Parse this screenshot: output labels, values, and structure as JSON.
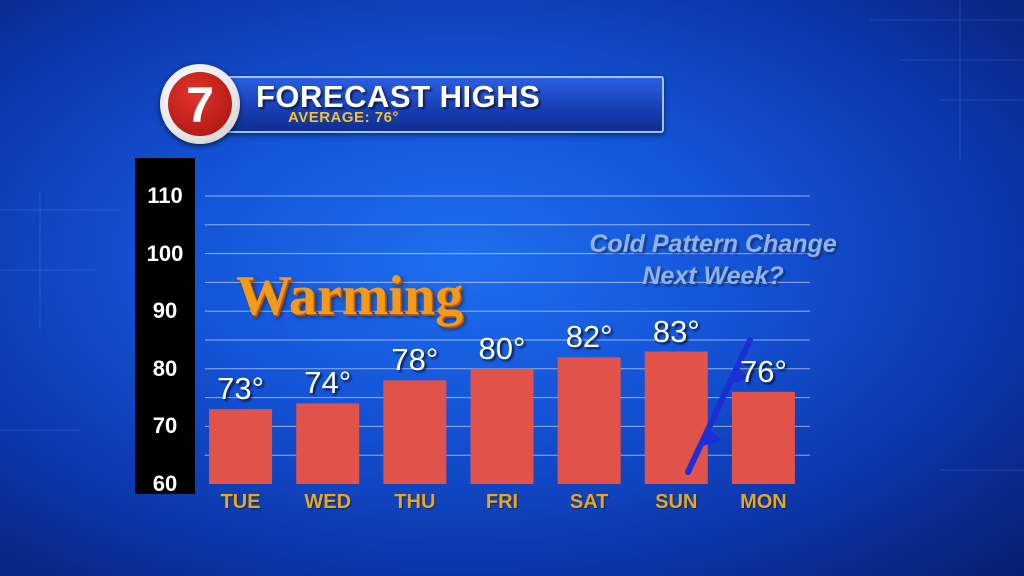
{
  "header": {
    "title": "FORECAST HIGHS",
    "subtitle": "AVERAGE: 76°",
    "logo_text": "7"
  },
  "colors": {
    "bar": "#e0524a",
    "day_label": "#e8a61e",
    "subtitle": "#f2c230",
    "front_line": "#1a2fd6"
  },
  "annotations": {
    "warming": "Warming",
    "cold_change_line1": "Cold Pattern Change",
    "cold_change_line2": "Next Week?"
  },
  "chart_data": {
    "type": "bar",
    "title": "FORECAST HIGHS",
    "categories": [
      "TUE",
      "WED",
      "THU",
      "FRI",
      "SAT",
      "SUN",
      "MON"
    ],
    "values": [
      73,
      74,
      78,
      80,
      82,
      83,
      76
    ],
    "value_labels": [
      "73°",
      "74°",
      "78°",
      "80°",
      "82°",
      "83°",
      "76°"
    ],
    "y_ticks": [
      "60",
      "70",
      "80",
      "90",
      "100",
      "110"
    ],
    "ylim": [
      60,
      110
    ],
    "grid": true
  }
}
